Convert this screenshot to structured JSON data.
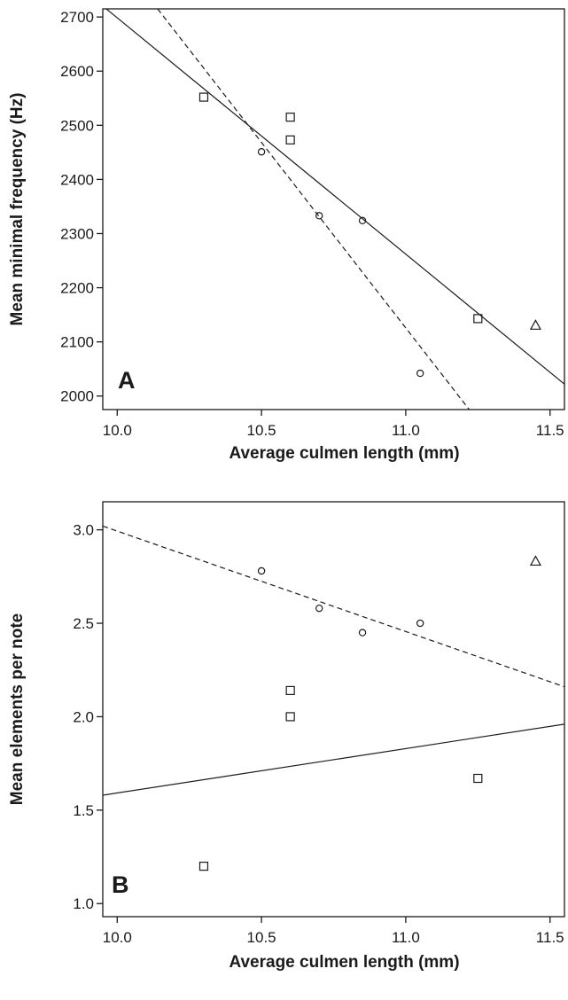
{
  "chart_data": [
    {
      "type": "scatter",
      "panel_label": "A",
      "xlabel": "Average culmen length (mm)",
      "ylabel": "Mean minimal frequency (Hz)",
      "xlim": [
        9.95,
        11.55
      ],
      "ylim": [
        1975,
        2715
      ],
      "xticks": [
        10.0,
        10.5,
        11.0,
        11.5
      ],
      "xtick_labels": [
        "10.0",
        "10.5",
        "11.0",
        "11.5"
      ],
      "yticks": [
        2000,
        2100,
        2200,
        2300,
        2400,
        2500,
        2600,
        2700
      ],
      "ytick_labels": [
        "2000",
        "2100",
        "2200",
        "2300",
        "2400",
        "2500",
        "2600",
        "2700"
      ],
      "grid": false,
      "series": [
        {
          "marker": "square",
          "points": [
            [
              10.3,
              2552
            ],
            [
              10.6,
              2515
            ],
            [
              10.6,
              2473
            ],
            [
              11.25,
              2143
            ]
          ]
        },
        {
          "marker": "circle",
          "points": [
            [
              10.5,
              2451
            ],
            [
              10.7,
              2333
            ],
            [
              10.85,
              2324
            ],
            [
              11.05,
              2042
            ]
          ]
        },
        {
          "marker": "triangle",
          "points": [
            [
              11.45,
              2130
            ]
          ]
        }
      ],
      "fit_lines": [
        {
          "style": "solid",
          "from": [
            9.93,
            2729
          ],
          "to": [
            11.55,
            2022
          ]
        },
        {
          "style": "dashed",
          "from": [
            10.14,
            2715
          ],
          "to": [
            11.22,
            1975
          ]
        }
      ]
    },
    {
      "type": "scatter",
      "panel_label": "B",
      "xlabel": "Average culmen length (mm)",
      "ylabel": "Mean elements per note",
      "xlim": [
        9.95,
        11.55
      ],
      "ylim": [
        0.93,
        3.15
      ],
      "xticks": [
        10.0,
        10.5,
        11.0,
        11.5
      ],
      "xtick_labels": [
        "10.0",
        "10.5",
        "11.0",
        "11.5"
      ],
      "yticks": [
        1.0,
        1.5,
        2.0,
        2.5,
        3.0
      ],
      "ytick_labels": [
        "1.0",
        "1.5",
        "2.0",
        "2.5",
        "3.0"
      ],
      "grid": false,
      "series": [
        {
          "marker": "square",
          "points": [
            [
              10.3,
              1.2
            ],
            [
              10.6,
              2.14
            ],
            [
              10.6,
              2.0
            ],
            [
              11.25,
              1.67
            ]
          ]
        },
        {
          "marker": "circle",
          "points": [
            [
              10.5,
              2.78
            ],
            [
              10.7,
              2.58
            ],
            [
              10.85,
              2.45
            ],
            [
              11.05,
              2.5
            ]
          ]
        },
        {
          "marker": "triangle",
          "points": [
            [
              11.45,
              2.83
            ]
          ]
        }
      ],
      "fit_lines": [
        {
          "style": "solid",
          "from": [
            9.95,
            1.58
          ],
          "to": [
            11.55,
            1.96
          ]
        },
        {
          "style": "dashed",
          "from": [
            9.95,
            3.02
          ],
          "to": [
            11.55,
            2.16
          ]
        }
      ]
    }
  ]
}
